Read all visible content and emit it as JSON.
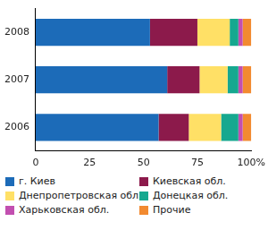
{
  "chart_data": {
    "type": "bar",
    "orientation": "horizontal",
    "stacked": true,
    "categories": [
      "2008",
      "2007",
      "2006"
    ],
    "series": [
      {
        "name": "г. Киев",
        "color": "#1c6bb8",
        "values": [
          53,
          61,
          57
        ]
      },
      {
        "name": "Киевская обл.",
        "color": "#8c1a4b",
        "values": [
          22,
          15,
          14
        ]
      },
      {
        "name": "Днепропетровская обл.",
        "color": "#ffe066",
        "values": [
          15,
          13,
          15
        ]
      },
      {
        "name": "Донецкая обл.",
        "color": "#16a88f",
        "values": [
          4,
          5,
          8
        ]
      },
      {
        "name": "Харьковская обл.",
        "color": "#c24fb0",
        "values": [
          2,
          2,
          2
        ]
      },
      {
        "name": "Прочие",
        "color": "#f28a30",
        "values": [
          4,
          4,
          4
        ]
      }
    ],
    "xlim": [
      0,
      100
    ],
    "xticks": [
      0,
      25,
      50,
      75,
      {
        "value": 100,
        "label": "100%"
      }
    ],
    "grid": false,
    "legend": "bottom"
  }
}
